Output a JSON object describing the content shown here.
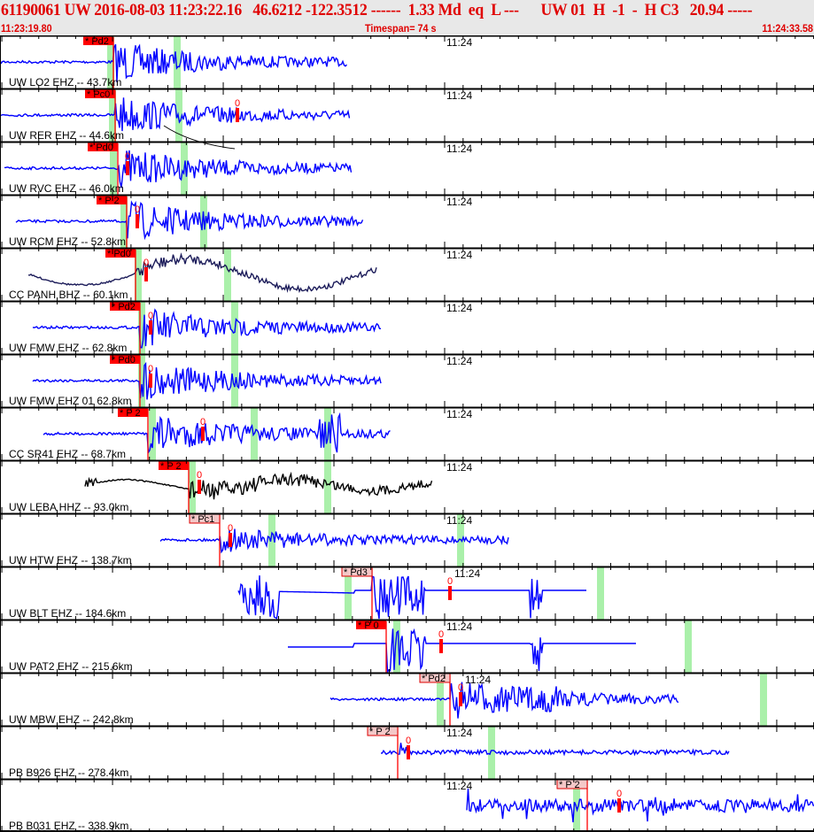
{
  "header": {
    "title": "61190061 UW 2016-08-03 11:23:22.16   46.6212 -122.3512 ------  1.33 Md  eq  L ---      UW 01  H  -1  -  H C3   20.94 -----",
    "start_time": "11:23:19.80",
    "timespan": "Timespan=  74 s",
    "end_time": "11:24:33.58",
    "minute_label": "11:24"
  },
  "colors": {
    "header_text": "#e00000",
    "trace": "#0000ff",
    "trace_lp": "#1c1c5a",
    "trace_bb": "#000000",
    "pick": "#ff0000",
    "pick_light": "#f4c8c8",
    "window": "#aaf0aa"
  },
  "coda_marker": "0",
  "traces": [
    {
      "label": "UW LO2 EHZ -- 43.7km",
      "phase": "* Pd2",
      "pick_style": "solid",
      "color": "#0000ff"
    },
    {
      "label": "UW RER EHZ -- 44.6km",
      "phase": "* Pc0",
      "pick_style": "solid",
      "color": "#0000ff"
    },
    {
      "label": "UW RVC EHZ -- 46.0km",
      "phase": "* Pd0",
      "pick_style": "solid",
      "color": "#0000ff"
    },
    {
      "label": "UW RCM EHZ -- 52.8km",
      "phase": "* P 2",
      "pick_style": "solid",
      "color": "#0000ff"
    },
    {
      "label": "CC PANH BHZ -- 60.1km",
      "phase": "* Pd0",
      "pick_style": "solid",
      "color": "#1c1c5a"
    },
    {
      "label": "UW FMW EHZ -- 62.8km",
      "phase": "* Pd2",
      "pick_style": "solid",
      "color": "#0000ff"
    },
    {
      "label": "UW FMW EHZ 01 62.8km",
      "phase": "* Pd0",
      "pick_style": "solid",
      "color": "#0000ff"
    },
    {
      "label": "CC SR41 EHZ -- 68.7km",
      "phase": "* P 2",
      "pick_style": "solid",
      "color": "#0000ff"
    },
    {
      "label": "UW LEBA HHZ -- 93.0km",
      "phase": "* P 2",
      "pick_style": "solid",
      "color": "#000000"
    },
    {
      "label": "UW HTW EHZ -- 138.7km",
      "phase": "* Pc1",
      "pick_style": "light",
      "color": "#0000ff"
    },
    {
      "label": "UW BLT EHZ -- 184.6km",
      "phase": "* Pd3",
      "pick_style": "light",
      "color": "#0000ff"
    },
    {
      "label": "UW PAT2 EHZ -- 215.6km",
      "phase": "* P 0",
      "pick_style": "solid",
      "color": "#0000ff"
    },
    {
      "label": "UW MBW EHZ -- 242.8km",
      "phase": "* Pd2",
      "pick_style": "light",
      "color": "#0000ff"
    },
    {
      "label": "PB B926 EHZ -- 278.4km",
      "phase": "* P 2",
      "pick_style": "light",
      "color": "#0000ff"
    },
    {
      "label": "PB B031 EHZ -- 338.9km",
      "phase": "* P 2",
      "pick_style": "light",
      "color": "#0000ff"
    }
  ]
}
